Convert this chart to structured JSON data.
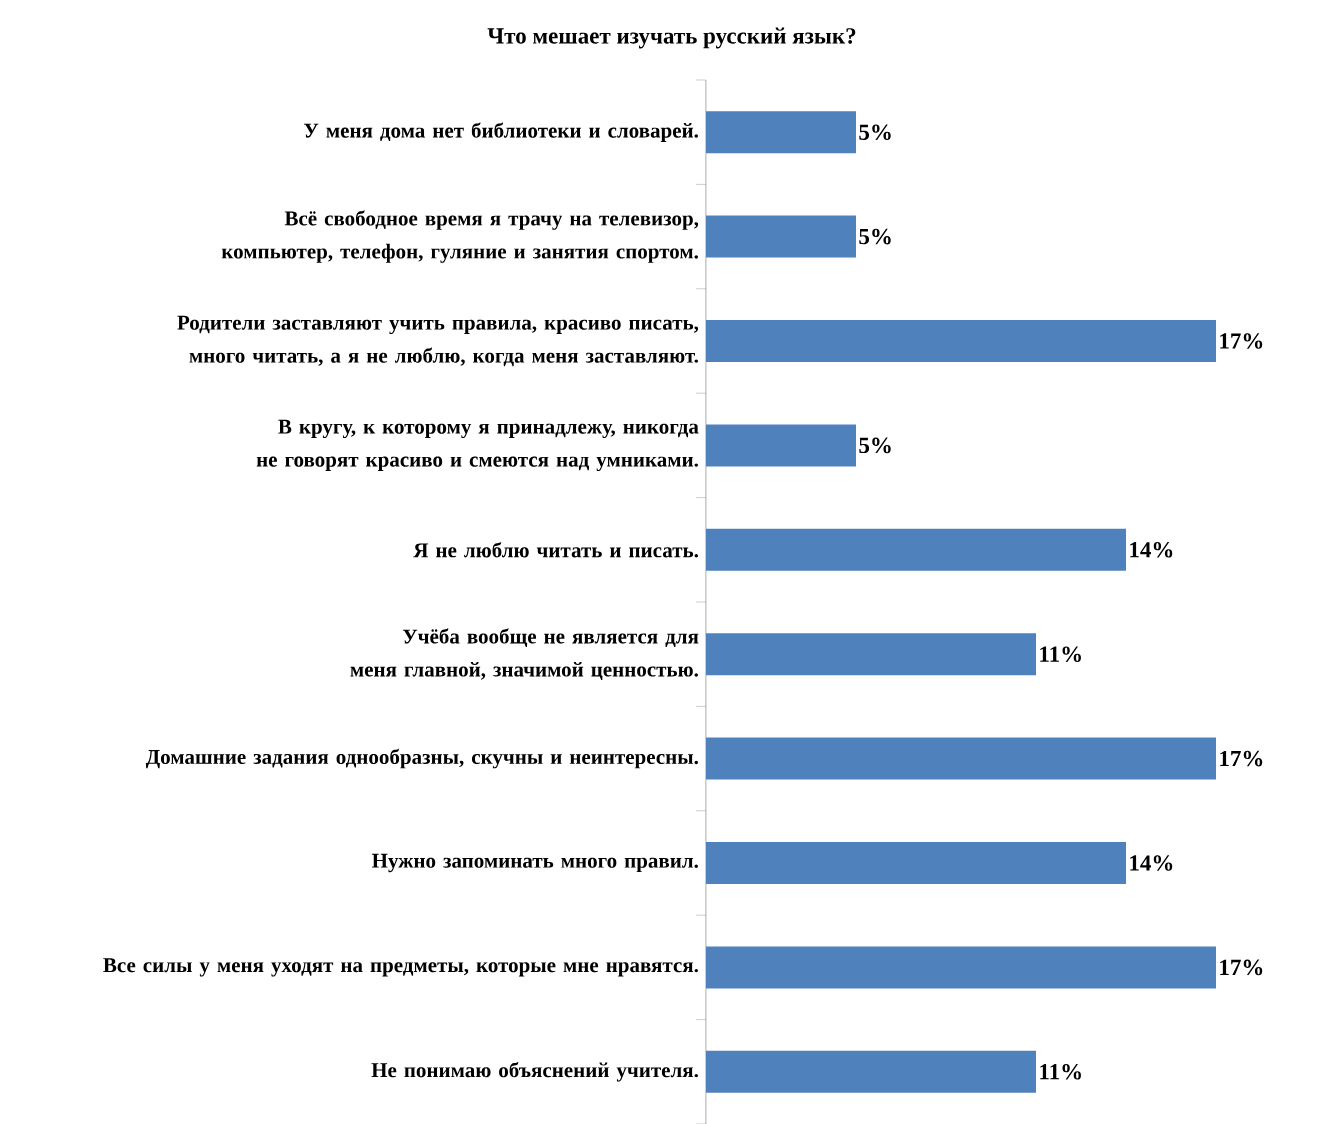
{
  "chart_data": {
    "type": "bar",
    "orientation": "horizontal",
    "title": "Что мешает изучать русский язык?",
    "categories": [
      "У меня дома нет библиотеки и словарей.",
      "Всё свободное время я трачу на телевизор, компьютер, телефон, гуляние и занятия спортом.",
      "Родители заставляют учить правила, красиво писать, много читать, а я не люблю, когда меня заставляют.",
      "В кругу, к которому я принадлежу, никогда не говорят красиво и смеются над умниками.",
      "Я не люблю читать и писать.",
      "Учёба вообще не является для меня главной, значимой ценностью.",
      "Домашние задания однообразны, скучны и неинтересны.",
      "Нужно запоминать много правил.",
      "Все силы у меня уходят на предметы, которые мне нравятся.",
      "Не понимаю объяснений учителя."
    ],
    "values": [
      5,
      5,
      17,
      5,
      14,
      11,
      17,
      14,
      17,
      11
    ],
    "value_labels": [
      "5%",
      "5%",
      "17%",
      "5%",
      "14%",
      "11%",
      "17%",
      "14%",
      "17%",
      "11%"
    ],
    "color": "#4f81bd",
    "tick_labels": "y"
  }
}
